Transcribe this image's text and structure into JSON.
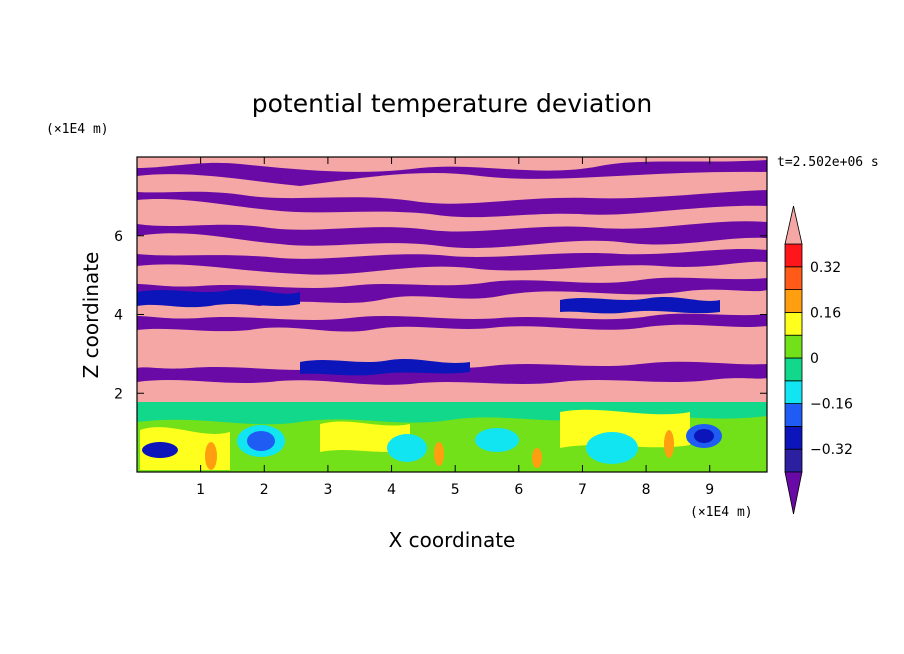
{
  "chart_data": {
    "type": "heatmap",
    "title": "potential temperature deviation",
    "xlabel": "X coordinate",
    "ylabel": "Z coordinate",
    "x_unit": "(×1E4 m)",
    "y_unit": "(×1E4 m)",
    "time_label": "t=2.502e+06 s",
    "xlim": [
      0,
      9.9
    ],
    "ylim": [
      0,
      8
    ],
    "x_ticks": [
      1,
      2,
      3,
      4,
      5,
      6,
      7,
      8,
      9
    ],
    "y_ticks": [
      2,
      4,
      6
    ],
    "colorbar": {
      "levels": [
        -0.4,
        -0.32,
        -0.24,
        -0.16,
        -0.08,
        0,
        0.08,
        0.16,
        0.24,
        0.32,
        0.4
      ],
      "tick_labels": [
        "0.32",
        "0.16",
        "0",
        "−0.16",
        "−0.32"
      ],
      "tick_values": [
        0.32,
        0.16,
        0,
        -0.16,
        -0.32
      ],
      "under_color": "#6a0aa6",
      "over_color": "#f4a7a4",
      "colors": [
        "#2c1fa0",
        "#0b15b9",
        "#1f5cf3",
        "#11e5f2",
        "#11d88a",
        "#72e11a",
        "#ffff1d",
        "#ff9f0f",
        "#ff5a17",
        "#ff161a"
      ]
    }
  }
}
